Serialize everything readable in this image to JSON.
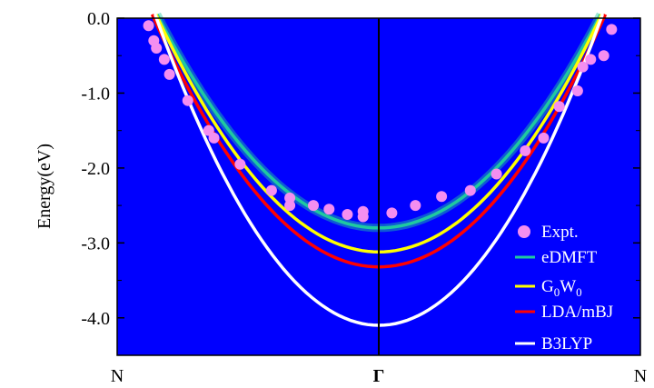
{
  "chart_data": {
    "type": "line",
    "title": "",
    "xlabel": "",
    "ylabel": "Energy(eV)",
    "ylim": [
      -4.5,
      0.0
    ],
    "yticks": [
      "0.0",
      "-1.0",
      "-2.0",
      "-3.0",
      "-4.0"
    ],
    "xlim": [
      -1.0,
      1.0
    ],
    "xticks": [
      {
        "x": -1.0,
        "label": "N"
      },
      {
        "x": 0.0,
        "label": "Γ"
      },
      {
        "x": 1.0,
        "label": "N"
      }
    ],
    "background": "#0000ff",
    "grid": false,
    "legend_position": "right",
    "series": [
      {
        "name": "eDMFT",
        "kind": "line",
        "color": "#1fc9a0",
        "min": -2.8,
        "zero_crossing": 0.84
      },
      {
        "name": "G0W0",
        "kind": "line",
        "color": "#ffff00",
        "min": -3.12,
        "zero_crossing": 0.845
      },
      {
        "name": "LDA/mBJ",
        "kind": "line",
        "color": "#ff0000",
        "min": -3.32,
        "zero_crossing": 0.86
      },
      {
        "name": "B3LYP",
        "kind": "line",
        "color": "#ffffff",
        "min": -4.1,
        "zero_crossing": 0.85
      },
      {
        "name": "Expt.",
        "kind": "scatter",
        "color": "#f48ef0",
        "points": [
          [
            -0.88,
            -0.1
          ],
          [
            -0.86,
            -0.3
          ],
          [
            -0.85,
            -0.4
          ],
          [
            -0.82,
            -0.55
          ],
          [
            -0.8,
            -0.75
          ],
          [
            -0.73,
            -1.1
          ],
          [
            -0.65,
            -1.5
          ],
          [
            -0.63,
            -1.6
          ],
          [
            -0.53,
            -1.95
          ],
          [
            -0.41,
            -2.3
          ],
          [
            -0.34,
            -2.4
          ],
          [
            -0.34,
            -2.5
          ],
          [
            -0.25,
            -2.5
          ],
          [
            -0.19,
            -2.55
          ],
          [
            -0.12,
            -2.62
          ],
          [
            -0.06,
            -2.58
          ],
          [
            -0.06,
            -2.65
          ],
          [
            0.05,
            -2.6
          ],
          [
            0.14,
            -2.5
          ],
          [
            0.24,
            -2.38
          ],
          [
            0.35,
            -2.3
          ],
          [
            0.45,
            -2.08
          ],
          [
            0.56,
            -1.77
          ],
          [
            0.63,
            -1.6
          ],
          [
            0.69,
            -1.18
          ],
          [
            0.76,
            -0.97
          ],
          [
            0.78,
            -0.65
          ],
          [
            0.81,
            -0.55
          ],
          [
            0.86,
            -0.5
          ],
          [
            0.89,
            -0.15
          ]
        ]
      }
    ],
    "legend": [
      "Expt.",
      "eDMFT",
      "G0W0",
      "LDA/mBJ",
      "B3LYP"
    ]
  }
}
